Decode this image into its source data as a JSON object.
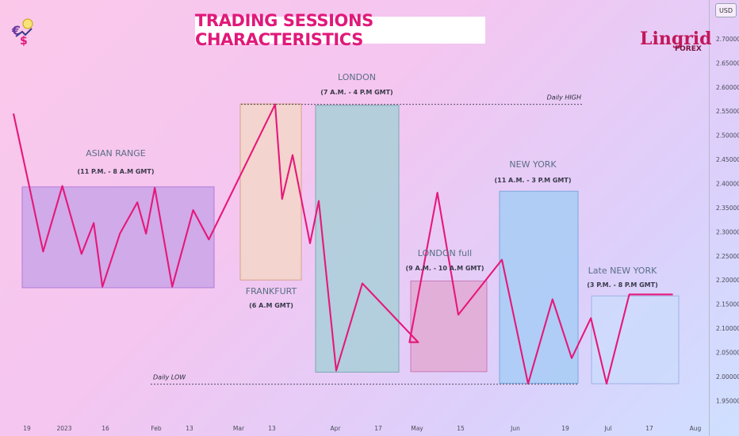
{
  "title": "TRADING SESSIONS CHARACTERISTICS",
  "currency_label": "USD",
  "brand": {
    "name": "Lingrid",
    "sub": "FOREX"
  },
  "colors": {
    "price_line": "#e6187a",
    "title_text": "#e0197a",
    "label_text": "#5a6e86",
    "asian_fill": "#c9a4e8",
    "frankfurt_fill": "#f3d6c8",
    "london_fill": "#a9cfd8",
    "london_full_fill": "#e2a9d2",
    "newyork_fill": "#a7cdf5",
    "late_ny_fill": "#cddbfb"
  },
  "chart_data": {
    "type": "line",
    "title": "TRADING SESSIONS CHARACTERISTICS",
    "xlabel": "",
    "ylabel": "",
    "ylim": [
      1.92,
      2.74
    ],
    "y_ticks": [
      "1.95000",
      "2.00000",
      "2.05000",
      "2.10000",
      "2.15000",
      "2.20000",
      "2.25000",
      "2.30000",
      "2.35000",
      "2.40000",
      "2.45000",
      "2.50000",
      "2.55000",
      "2.60000",
      "2.65000",
      "2.70000"
    ],
    "x_ticks": [
      "19",
      "2023",
      "16",
      "Feb",
      "13",
      "Mar",
      "13",
      "Apr",
      "17",
      "May",
      "15",
      "Jun",
      "19",
      "Jul",
      "17",
      "Aug"
    ],
    "grid": false,
    "price_series": {
      "x": [
        0,
        9,
        17,
        28,
        39,
        46,
        51,
        61,
        71,
        76,
        81,
        91,
        103,
        112,
        150,
        154,
        160,
        170,
        175,
        185,
        200,
        232,
        227,
        243,
        255,
        280,
        295,
        309,
        320,
        331,
        340,
        353,
        360,
        366,
        378
      ],
      "y": [
        2.545,
        2.395,
        2.259,
        2.395,
        2.254,
        2.318,
        2.186,
        2.296,
        2.361,
        2.296,
        2.391,
        2.186,
        2.345,
        2.284,
        2.564,
        2.368,
        2.459,
        2.276,
        2.364,
        2.012,
        2.193,
        2.071,
        2.071,
        2.381,
        2.128,
        2.242,
        1.985,
        2.16,
        2.038,
        2.121,
        1.985,
        2.17,
        2.17,
        2.17,
        2.17
      ]
    },
    "levels": [
      {
        "label": "Daily HIGH",
        "value": 2.564
      },
      {
        "label": "Daily LOW",
        "value": 1.984
      }
    ],
    "sessions": [
      {
        "name": "ASIAN RANGE",
        "hours": "(11 P.M. - 8 A.M GMT)",
        "high": 2.393,
        "low": 2.184
      },
      {
        "name": "FRANKFURT",
        "hours": "(6 A.M GMT)",
        "high": 2.565,
        "low": 2.2
      },
      {
        "name": "LONDON",
        "hours": "(7 A.M. - 4 P.M GMT)",
        "high": 2.562,
        "low": 2.009
      },
      {
        "name": "LONDON full",
        "hours": "(9 A.M. - 10 A.M GMT)",
        "high": 2.198,
        "low": 2.01
      },
      {
        "name": "NEW YORK",
        "hours": "(11 A.M. - 3 P.M GMT)",
        "high": 2.384,
        "low": 1.986
      },
      {
        "name": "Late NEW YORK",
        "hours": "(3 P.M. - 8 P.M GMT)",
        "high": 2.167,
        "low": 1.985
      }
    ]
  }
}
